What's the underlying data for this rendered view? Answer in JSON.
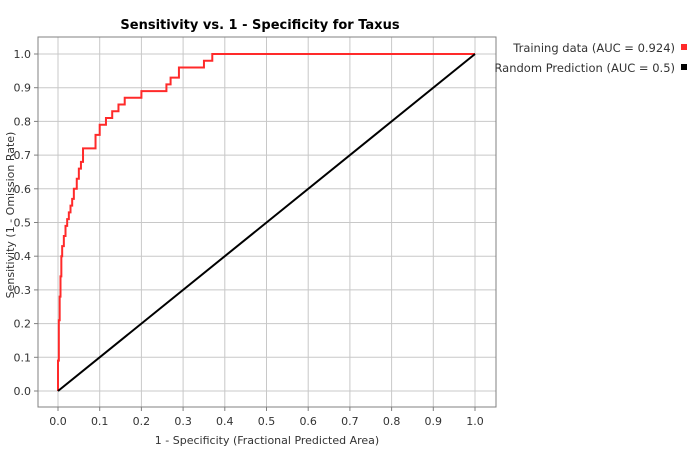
{
  "chart_data": {
    "type": "line",
    "title": "Sensitivity vs. 1 - Specificity for Taxus",
    "xlabel": "1 - Specificity  (Fractional Predicted Area)",
    "ylabel": "Sensitivity  (1 - Omission Rate)",
    "xlim": [
      0,
      1
    ],
    "ylim": [
      0,
      1
    ],
    "x_ticks": [
      "0.0",
      "0.1",
      "0.2",
      "0.3",
      "0.4",
      "0.5",
      "0.6",
      "0.7",
      "0.8",
      "0.9",
      "1.0"
    ],
    "y_ticks": [
      "0.0",
      "0.1",
      "0.2",
      "0.3",
      "0.4",
      "0.5",
      "0.6",
      "0.7",
      "0.8",
      "0.9",
      "1.0"
    ],
    "grid": true,
    "legend_position": "top-right, outside plot",
    "series": [
      {
        "name": "Training data (AUC = 0.924)",
        "color": "#ff2a2a",
        "x": [
          0.0,
          0.0,
          0.002,
          0.002,
          0.004,
          0.004,
          0.006,
          0.006,
          0.008,
          0.008,
          0.01,
          0.01,
          0.014,
          0.014,
          0.018,
          0.018,
          0.022,
          0.022,
          0.026,
          0.026,
          0.03,
          0.03,
          0.034,
          0.034,
          0.038,
          0.038,
          0.045,
          0.045,
          0.05,
          0.05,
          0.055,
          0.055,
          0.06,
          0.06,
          0.09,
          0.09,
          0.1,
          0.1,
          0.115,
          0.115,
          0.13,
          0.13,
          0.145,
          0.145,
          0.16,
          0.16,
          0.2,
          0.2,
          0.26,
          0.26,
          0.27,
          0.27,
          0.29,
          0.29,
          0.35,
          0.35,
          0.37,
          0.37,
          1.0
        ],
        "y": [
          0.0,
          0.09,
          0.09,
          0.21,
          0.21,
          0.28,
          0.28,
          0.34,
          0.34,
          0.4,
          0.4,
          0.43,
          0.43,
          0.46,
          0.46,
          0.49,
          0.49,
          0.51,
          0.51,
          0.53,
          0.53,
          0.55,
          0.55,
          0.57,
          0.57,
          0.6,
          0.6,
          0.63,
          0.63,
          0.66,
          0.66,
          0.68,
          0.68,
          0.72,
          0.72,
          0.76,
          0.76,
          0.79,
          0.79,
          0.81,
          0.81,
          0.83,
          0.83,
          0.85,
          0.85,
          0.87,
          0.87,
          0.89,
          0.89,
          0.91,
          0.91,
          0.93,
          0.93,
          0.96,
          0.96,
          0.98,
          0.98,
          1.0,
          1.0
        ]
      },
      {
        "name": "Random Prediction (AUC = 0.5)",
        "color": "#000000",
        "x": [
          0.0,
          1.0
        ],
        "y": [
          0.0,
          1.0
        ]
      }
    ]
  }
}
